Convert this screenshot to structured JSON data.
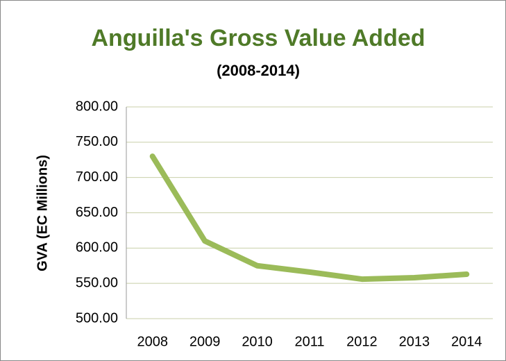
{
  "chart_data": {
    "type": "line",
    "title": "Anguilla's Gross Value Added",
    "subtitle": "(2008-2014)",
    "y_label": "GVA (EC Millions)",
    "categories": [
      "2008",
      "2009",
      "2010",
      "2011",
      "2012",
      "2013",
      "2014"
    ],
    "series": [
      {
        "name": "GVA",
        "color": "#9bbb59",
        "values": [
          730,
          610,
          575,
          566,
          556,
          558,
          563
        ]
      }
    ],
    "ylim": [
      500,
      800
    ],
    "yticks": [
      {
        "value": 500,
        "label": "500.00"
      },
      {
        "value": 550,
        "label": "550.00"
      },
      {
        "value": 600,
        "label": "600.00"
      },
      {
        "value": 650,
        "label": "650.00"
      },
      {
        "value": 700,
        "label": "700.00"
      },
      {
        "value": 750,
        "label": "750.00"
      },
      {
        "value": 800,
        "label": "800.00"
      }
    ],
    "grid": true
  }
}
